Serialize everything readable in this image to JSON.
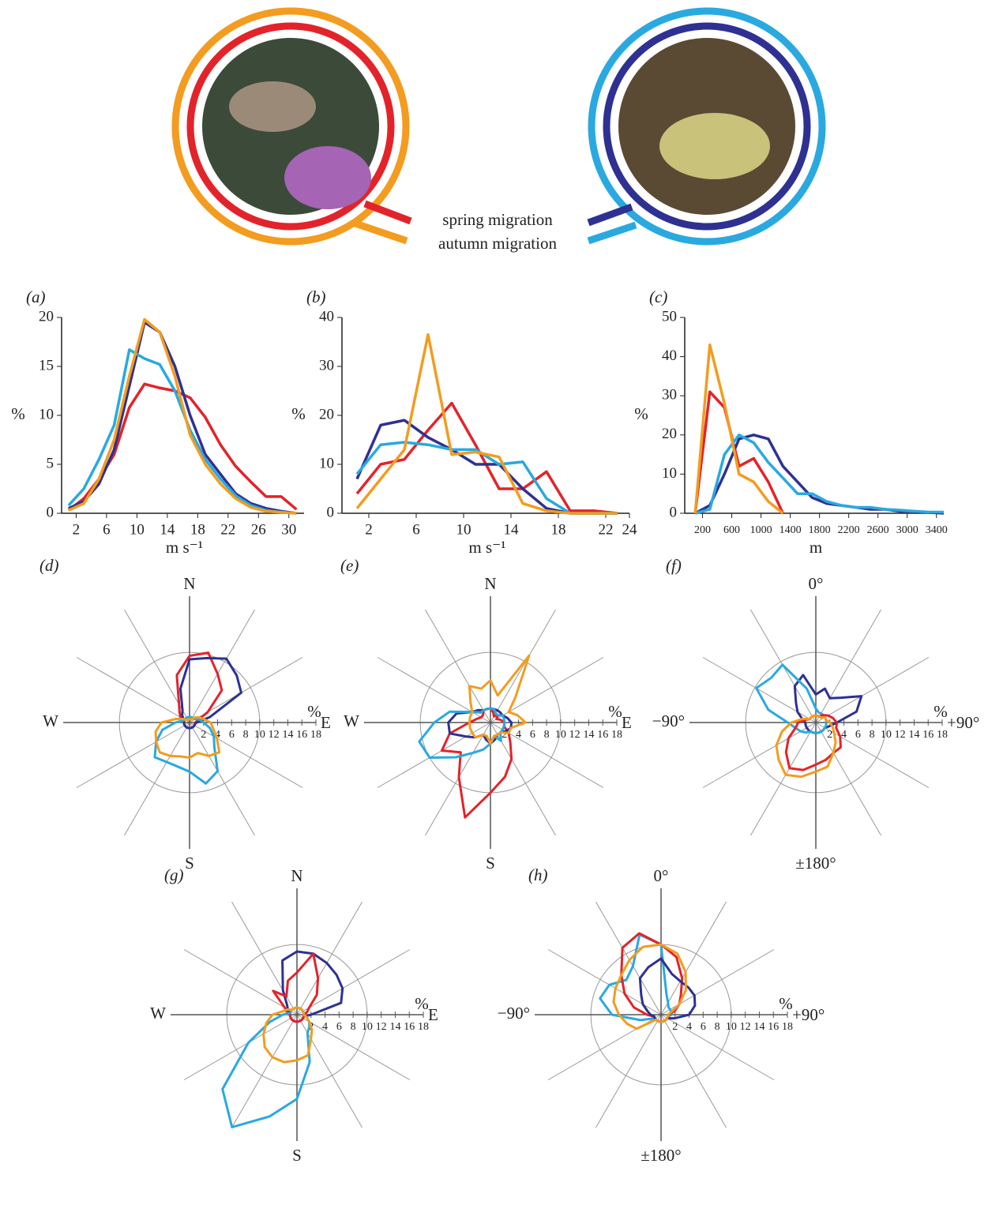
{
  "legend": {
    "spring": "spring migration",
    "autumn": "autumn migration"
  },
  "chart_data": [
    {
      "type": "line",
      "label": "(a)",
      "xlabel": "m s⁻¹",
      "ylabel": "%",
      "x": [
        1,
        3,
        5,
        7,
        9,
        11,
        13,
        15,
        17,
        19,
        21,
        23,
        25,
        27,
        29,
        31
      ],
      "xlim": [
        0.5,
        32
      ],
      "ylim": [
        0,
        20
      ],
      "xticks": [
        2,
        6,
        10,
        14,
        18,
        22,
        26,
        30
      ],
      "yticks": [
        0,
        5,
        10,
        15,
        20
      ],
      "series": [
        {
          "color": "#e3232a",
          "values": [
            0.3,
            1.5,
            3.5,
            6,
            10.8,
            13.2,
            12.8,
            12.5,
            11.8,
            9.8,
            7,
            4.8,
            3.2,
            1.7,
            1.7,
            0.4
          ]
        },
        {
          "color": "#2e3192",
          "values": [
            0.5,
            1.2,
            3,
            6.5,
            13,
            19.5,
            18.5,
            15,
            10,
            6,
            4,
            2,
            1,
            0.5,
            0.2,
            0
          ]
        },
        {
          "color": "#29a9e0",
          "values": [
            0.8,
            2.5,
            5.5,
            9,
            16.7,
            15.8,
            15.2,
            12.5,
            8.5,
            5.5,
            3.5,
            1.8,
            0.8,
            0.3,
            0.1,
            0
          ]
        },
        {
          "color": "#f39c1f",
          "values": [
            0.3,
            1,
            3.5,
            7.5,
            14,
            19.8,
            18.5,
            14,
            8,
            5,
            3,
            1.5,
            0.6,
            0.2,
            0.1,
            0
          ]
        }
      ]
    },
    {
      "type": "line",
      "label": "(b)",
      "xlabel": "m s⁻¹",
      "ylabel": "%",
      "x": [
        1,
        3,
        5,
        7,
        9,
        11,
        13,
        15,
        17,
        19,
        21,
        23
      ],
      "xlim": [
        0,
        24
      ],
      "ylim": [
        0,
        40
      ],
      "xticks": [
        2,
        6,
        10,
        14,
        18,
        22,
        24
      ],
      "yticks": [
        0,
        10,
        20,
        30,
        40
      ],
      "series": [
        {
          "color": "#e3232a",
          "values": [
            4,
            10,
            11,
            17,
            22.5,
            14,
            5,
            5,
            8.5,
            0.5,
            0.5,
            0
          ]
        },
        {
          "color": "#2e3192",
          "values": [
            7,
            18,
            19,
            15.5,
            13,
            10,
            10,
            5,
            1,
            0,
            0,
            0
          ]
        },
        {
          "color": "#29a9e0",
          "values": [
            8,
            14,
            14.5,
            14,
            13,
            13,
            10,
            10.5,
            3,
            0,
            0,
            0
          ]
        },
        {
          "color": "#f39c1f",
          "values": [
            1,
            7,
            13,
            36.5,
            12,
            12.5,
            11.5,
            2,
            0.5,
            0,
            0,
            0
          ]
        }
      ]
    },
    {
      "type": "line",
      "label": "(c)",
      "xlabel": "m",
      "ylabel": "%",
      "x": [
        100,
        300,
        500,
        700,
        900,
        1100,
        1300,
        1500,
        1700,
        1900,
        2100,
        2300,
        2500,
        2700,
        2900,
        3100,
        3300,
        3500
      ],
      "xlim": [
        0,
        3500
      ],
      "ylim": [
        0,
        50
      ],
      "xticks": [
        200,
        600,
        1000,
        1400,
        1800,
        2200,
        2600,
        3000,
        3400
      ],
      "yticks": [
        0,
        10,
        20,
        30,
        40,
        50
      ],
      "series": [
        {
          "color": "#e3232a",
          "values": [
            0,
            31,
            27,
            12,
            14,
            8,
            0,
            null,
            null,
            null,
            null,
            null,
            null,
            null,
            null,
            null,
            null,
            null
          ]
        },
        {
          "color": "#2e3192",
          "values": [
            0,
            2,
            10,
            19,
            20,
            19,
            12,
            8,
            4,
            2.5,
            2,
            1.5,
            1,
            1,
            0.5,
            0.5,
            0.2,
            0
          ]
        },
        {
          "color": "#29a9e0",
          "values": [
            0,
            1,
            15,
            20,
            18,
            13,
            9,
            5,
            5,
            3,
            2,
            1.5,
            1.5,
            1,
            0.8,
            0.5,
            0.3,
            0.3
          ]
        },
        {
          "color": "#f39c1f",
          "values": [
            0,
            43,
            28,
            10,
            8,
            3,
            0,
            null,
            null,
            null,
            null,
            null,
            null,
            null,
            null,
            null,
            null,
            null
          ]
        }
      ]
    },
    {
      "type": "polar",
      "label": "(d)",
      "unit": "%",
      "directions": [
        "N",
        "E",
        "S",
        "W"
      ],
      "theta": [
        0,
        15,
        30,
        45,
        60,
        75,
        90,
        105,
        120,
        135,
        150,
        165,
        180,
        195,
        210,
        225,
        240,
        255,
        270,
        285,
        300,
        315,
        330,
        345
      ],
      "rlim": [
        0,
        18
      ],
      "rticks": [
        2,
        4,
        6,
        8,
        10,
        12,
        14,
        16,
        18
      ],
      "rings": [
        10
      ],
      "series": [
        {
          "color": "#e3232a",
          "values": [
            9.5,
            10.3,
            8,
            6.5,
            3,
            1.2,
            0.8,
            0.8,
            0.8,
            0.8,
            0.8,
            0.8,
            0.8,
            0.8,
            0.8,
            0.8,
            0.8,
            0.8,
            0.8,
            0.8,
            1.5,
            2,
            3,
            7
          ]
        },
        {
          "color": "#2e3192",
          "values": [
            9,
            9.5,
            10.5,
            9.5,
            8.5,
            3,
            1,
            0.8,
            0.8,
            0.8,
            0.8,
            0.8,
            0.8,
            0.8,
            0.8,
            0.8,
            0.8,
            0.8,
            0.8,
            0.8,
            1,
            1.5,
            2,
            5
          ]
        },
        {
          "color": "#29a9e0",
          "values": [
            0.8,
            0.8,
            0.8,
            0.8,
            1,
            1.5,
            2,
            3,
            4,
            5,
            8,
            9,
            7,
            6.5,
            6.5,
            7,
            5.5,
            4,
            2,
            1,
            0.8,
            0.8,
            0.8,
            0.8
          ]
        },
        {
          "color": "#f39c1f",
          "values": [
            0.5,
            0.5,
            0.5,
            1,
            1.5,
            2,
            3,
            3.5,
            4.5,
            6,
            5.5,
            4.5,
            5,
            5,
            5.5,
            6,
            5.5,
            5,
            4,
            2,
            1,
            0.5,
            0.5,
            0.5
          ]
        }
      ]
    },
    {
      "type": "polar",
      "label": "(e)",
      "unit": "%",
      "directions": [
        "N",
        "E",
        "S",
        "W"
      ],
      "theta": [
        0,
        15,
        30,
        45,
        60,
        75,
        90,
        105,
        120,
        135,
        150,
        165,
        180,
        195,
        210,
        225,
        240,
        255,
        270,
        285,
        300,
        315,
        330,
        345
      ],
      "rlim": [
        0,
        18
      ],
      "rticks": [
        2,
        4,
        6,
        8,
        10,
        12,
        14,
        16,
        18
      ],
      "rings": [
        10
      ],
      "series": [
        {
          "color": "#e3232a",
          "values": [
            2,
            1.5,
            1,
            1.5,
            1,
            1.5,
            2,
            2,
            3,
            4,
            6,
            8,
            10,
            14,
            9,
            6,
            8,
            6,
            3,
            2,
            1.5,
            1.5,
            2,
            2
          ]
        },
        {
          "color": "#2e3192",
          "values": [
            2,
            2,
            2,
            2,
            2,
            2.5,
            3,
            3,
            2.5,
            2,
            2,
            2.5,
            3,
            2.5,
            2,
            3,
            4,
            6,
            6,
            5,
            3,
            2.5,
            2,
            2
          ]
        },
        {
          "color": "#29a9e0",
          "values": [
            2,
            2,
            1.5,
            1.5,
            2,
            2,
            2,
            2,
            2,
            2,
            3,
            2,
            3,
            4,
            5,
            7,
            10,
            10.5,
            8,
            6,
            3,
            2,
            2,
            2
          ]
        },
        {
          "color": "#f39c1f",
          "values": [
            6,
            4,
            11,
            5,
            3,
            4,
            5,
            3,
            3,
            2,
            2,
            2,
            3,
            2,
            2,
            3,
            3,
            3,
            3,
            3,
            3,
            4,
            6,
            5
          ]
        }
      ]
    },
    {
      "type": "polar",
      "label": "(f)",
      "unit": "%",
      "directions": [
        "0°",
        "+90°",
        "±180°",
        "−90°"
      ],
      "theta": [
        0,
        15,
        30,
        45,
        60,
        75,
        90,
        105,
        120,
        135,
        150,
        165,
        180,
        195,
        210,
        225,
        240,
        255,
        270,
        285,
        300,
        315,
        330,
        345
      ],
      "rlim": [
        0,
        18
      ],
      "rticks": [
        2,
        4,
        6,
        8,
        10,
        12,
        14,
        16,
        18
      ],
      "rings": [
        10
      ],
      "series": [
        {
          "color": "#2e3192",
          "values": [
            4,
            5,
            4,
            5,
            7.5,
            6,
            3,
            2,
            1.5,
            1.5,
            1.5,
            1.5,
            1.5,
            1.5,
            1.5,
            1.5,
            1.5,
            1.5,
            1.5,
            2,
            3,
            4,
            6,
            7
          ]
        },
        {
          "color": "#29a9e0",
          "values": [
            2,
            1.5,
            1.5,
            1.5,
            1.5,
            1.5,
            1.5,
            1.5,
            1.5,
            1.5,
            1.5,
            1.5,
            1.5,
            1.5,
            1.5,
            2,
            2.5,
            3,
            4,
            7,
            9.8,
            9,
            9.5,
            5
          ]
        },
        {
          "color": "#e3232a",
          "values": [
            1,
            1,
            1,
            1.5,
            2,
            2.5,
            3,
            3,
            4,
            5,
            5,
            5.5,
            6,
            7,
            7.5,
            6,
            4.5,
            3,
            2.5,
            1.5,
            1,
            1,
            1,
            1
          ]
        },
        {
          "color": "#f39c1f",
          "values": [
            1,
            1,
            1,
            1,
            1.5,
            1.5,
            2,
            2.5,
            3,
            4,
            5,
            6.5,
            7,
            8,
            8.6,
            7.5,
            6.5,
            5,
            3.5,
            2,
            1,
            1,
            1,
            1
          ]
        }
      ]
    },
    {
      "type": "polar",
      "label": "(g)",
      "unit": "%",
      "directions": [
        "N",
        "E",
        "S",
        "W"
      ],
      "theta": [
        0,
        15,
        30,
        45,
        60,
        75,
        90,
        105,
        120,
        135,
        150,
        165,
        180,
        195,
        210,
        225,
        240,
        255,
        270,
        285,
        300,
        315,
        330,
        345
      ],
      "rlim": [
        0,
        18
      ],
      "rticks": [
        2,
        4,
        6,
        8,
        10,
        12,
        14,
        16,
        18
      ],
      "rings": [
        10
      ],
      "series": [
        {
          "color": "#2e3192",
          "values": [
            9,
            9,
            8.5,
            8,
            7.5,
            6.5,
            2,
            1,
            1,
            1,
            1,
            1,
            1,
            1,
            1,
            1,
            1,
            1,
            1,
            1,
            1.5,
            2,
            4,
            8
          ]
        },
        {
          "color": "#e3232a",
          "values": [
            6,
            9,
            6,
            4,
            2,
            1.5,
            1,
            1,
            1,
            1,
            1,
            1,
            1,
            1,
            1,
            1,
            1,
            1,
            1,
            1.5,
            2,
            4.8,
            3,
            5
          ]
        },
        {
          "color": "#29a9e0",
          "values": [
            1,
            1,
            1,
            1,
            1,
            1,
            1,
            1.5,
            2,
            2.5,
            3,
            7,
            12,
            15,
            18.5,
            15,
            8,
            4,
            2,
            1,
            1,
            1,
            1,
            1
          ]
        },
        {
          "color": "#f39c1f",
          "values": [
            1,
            1,
            1,
            1,
            1,
            1,
            1,
            1.5,
            2,
            3,
            4,
            6,
            6.5,
            7,
            7,
            6.5,
            5.5,
            4.5,
            3.5,
            2,
            1.5,
            1,
            1,
            1
          ]
        }
      ]
    },
    {
      "type": "polar",
      "label": "(h)",
      "unit": "%",
      "directions": [
        "0°",
        "+90°",
        "±180°",
        "−90°"
      ],
      "theta": [
        0,
        15,
        30,
        45,
        60,
        75,
        90,
        105,
        120,
        135,
        150,
        165,
        180,
        195,
        210,
        225,
        240,
        255,
        270,
        285,
        300,
        315,
        330,
        345
      ],
      "rlim": [
        0,
        18
      ],
      "rticks": [
        2,
        4,
        6,
        8,
        10,
        12,
        14,
        16,
        18
      ],
      "rings": [
        10
      ],
      "series": [
        {
          "color": "#29a9e0",
          "values": [
            10,
            3,
            2,
            1.5,
            1.5,
            1.5,
            1.5,
            1,
            1,
            1,
            1,
            1,
            1,
            1,
            1,
            1,
            1,
            3,
            7,
            9,
            8.5,
            7,
            8,
            11.8
          ]
        },
        {
          "color": "#e3232a",
          "values": [
            10,
            8.5,
            6,
            4,
            3,
            2,
            1,
            1,
            1,
            1,
            1,
            1,
            1,
            1,
            1,
            1,
            1,
            1,
            2,
            4,
            6,
            8,
            11,
            12
          ]
        },
        {
          "color": "#2e3192",
          "values": [
            8,
            6,
            5.5,
            5.5,
            5.5,
            5,
            4,
            2,
            1,
            1,
            1,
            1,
            1,
            1,
            1,
            1,
            1,
            1,
            1.5,
            2,
            3,
            4,
            6,
            7
          ]
        },
        {
          "color": "#f39c1f",
          "values": [
            10,
            9,
            7,
            5,
            3,
            1.5,
            1,
            1,
            1,
            1,
            1,
            1,
            1,
            1,
            1,
            1,
            4,
            5,
            6,
            7,
            7.5,
            8,
            9,
            10
          ]
        }
      ]
    }
  ]
}
